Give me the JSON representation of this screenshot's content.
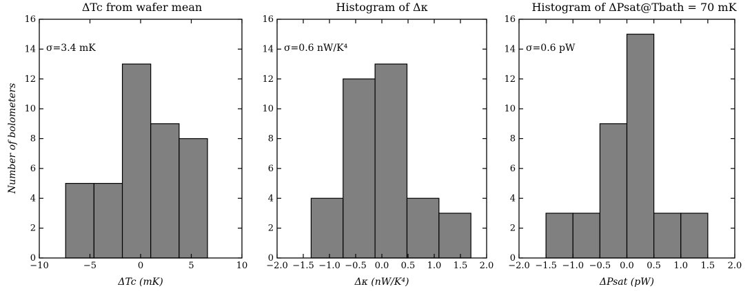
{
  "figure": {
    "ylabel": "Number of bolometers"
  },
  "chart_data": [
    {
      "type": "bar",
      "title": "ΔTc from wafer mean",
      "xlabel": "ΔTc (mK)",
      "annotation": "σ=3.4 mK",
      "xlim": [
        -10,
        10
      ],
      "ylim": [
        0,
        16
      ],
      "xticks": [
        -10,
        -5,
        0,
        5,
        10
      ],
      "xtick_labels": [
        "−10",
        "−5",
        "0",
        "5",
        "10"
      ],
      "yticks": [
        0,
        2,
        4,
        6,
        8,
        10,
        12,
        14,
        16
      ],
      "bin_edges": [
        -7.4,
        -4.6,
        -1.8,
        1.0,
        3.8,
        6.6
      ],
      "values": [
        5,
        5,
        13,
        9,
        8
      ]
    },
    {
      "type": "bar",
      "title": "Histogram of Δκ",
      "xlabel": "Δκ (nW/K⁴)",
      "annotation": "σ=0.6 nW/K⁴",
      "xlim": [
        -2.0,
        2.0
      ],
      "ylim": [
        0,
        16
      ],
      "xticks": [
        -2.0,
        -1.5,
        -1.0,
        -0.5,
        0.0,
        0.5,
        1.0,
        1.5,
        2.0
      ],
      "xtick_labels": [
        "−2.0",
        "−1.5",
        "−1.0",
        "−0.5",
        "0.0",
        "0.5",
        "1.0",
        "1.5",
        "2.0"
      ],
      "yticks": [
        0,
        2,
        4,
        6,
        8,
        10,
        12,
        14,
        16
      ],
      "bin_edges": [
        -1.35,
        -0.74,
        -0.13,
        0.48,
        1.09,
        1.7
      ],
      "values": [
        4,
        12,
        13,
        4,
        3
      ]
    },
    {
      "type": "bar",
      "title": "Histogram of ΔPsat@Tbath = 70 mK",
      "xlabel": "ΔPsat (pW)",
      "annotation": "σ=0.6 pW",
      "xlim": [
        -2.0,
        2.0
      ],
      "ylim": [
        0,
        16
      ],
      "xticks": [
        -2.0,
        -1.5,
        -1.0,
        -0.5,
        0.0,
        0.5,
        1.0,
        1.5,
        2.0
      ],
      "xtick_labels": [
        "−2.0",
        "−1.5",
        "−1.0",
        "−0.5",
        "0.0",
        "0.5",
        "1.0",
        "1.5",
        "2.0"
      ],
      "yticks": [
        0,
        2,
        4,
        6,
        8,
        10,
        12,
        14,
        16
      ],
      "bin_edges": [
        -1.5,
        -1.0,
        -0.5,
        0.0,
        0.5,
        1.0,
        1.5
      ],
      "values": [
        3,
        3,
        9,
        15,
        3,
        3
      ]
    }
  ]
}
